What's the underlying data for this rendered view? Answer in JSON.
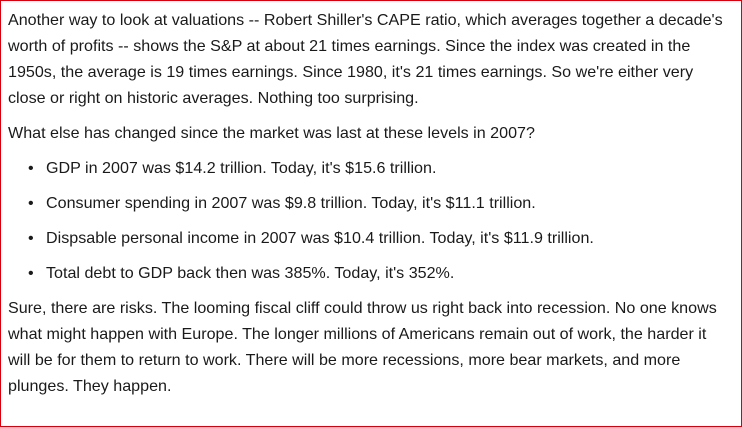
{
  "article": {
    "intro": "Another way to look at valuations -- Robert Shiller's CAPE ratio, which averages together a decade's worth of profits -- shows the S&P at about 21 times earnings. Since the index was created in the 1950s, the average is 19 times earnings. Since 1980, it's 21 times earnings. So we're either very close or right on historic averages. Nothing too surprising.",
    "question": "What else has changed since the market was last at these levels in 2007?",
    "bullets": [
      "GDP in 2007 was $14.2 trillion. Today, it's $15.6 trillion.",
      "Consumer spending in 2007 was $9.8 trillion. Today, it's $11.1 trillion.",
      "Dispsable personal income in 2007 was $10.4 trillion. Today, it's $11.9 trillion.",
      "Total debt to GDP back then was 385%. Today, it's 352%."
    ],
    "closing": "Sure, there are risks. The looming fiscal cliff could throw us right back into recession. No one knows what might happen with Europe. The longer millions of Americans remain out of work, the harder it will be for them to return to work. There will be more recessions, more bear markets, and more plunges. They happen."
  },
  "colors": {
    "border": "#d9000d",
    "text": "#1a1a1a",
    "background": "#ffffff"
  }
}
